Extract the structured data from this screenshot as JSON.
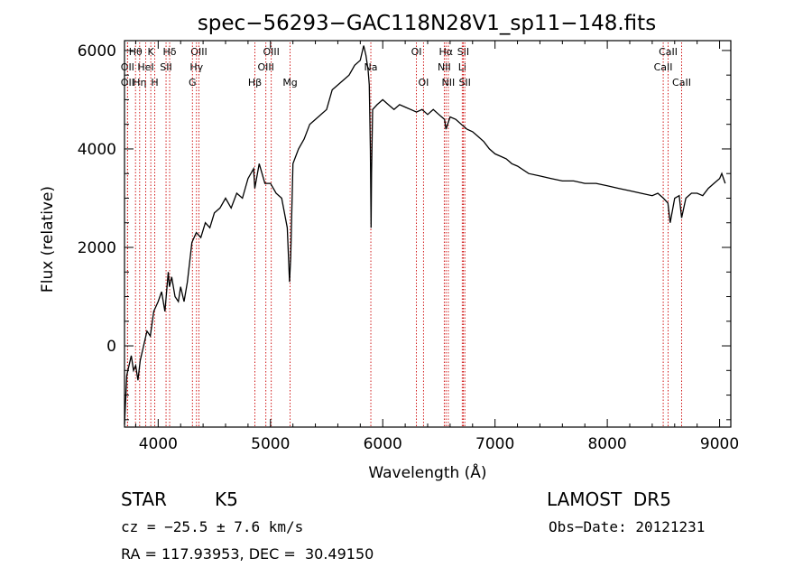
{
  "chart_data": {
    "type": "line",
    "title": "spec−56293−GAC118N28V1_sp11−148.fits",
    "xlabel": "Wavelength (Å)",
    "ylabel": "Flux (relative)",
    "xlim": [
      3700,
      9100
    ],
    "ylim": [
      -1650,
      6200
    ],
    "x_ticks": [
      4000,
      5000,
      6000,
      7000,
      8000,
      9000
    ],
    "y_ticks": [
      0,
      2000,
      4000,
      6000
    ],
    "grid": false,
    "line_color": "#000000",
    "marker_color": "#cc0000",
    "series": [
      {
        "x": [
          3700,
          3720,
          3740,
          3760,
          3780,
          3800,
          3820,
          3840,
          3860,
          3880,
          3900,
          3930,
          3960,
          4000,
          4030,
          4060,
          4090,
          4100,
          4120,
          4150,
          4180,
          4200,
          4230,
          4260,
          4300,
          4340,
          4380,
          4420,
          4460,
          4500,
          4550,
          4600,
          4650,
          4700,
          4750,
          4800,
          4850,
          4860,
          4900,
          4950,
          5000,
          5050,
          5100,
          5150,
          5170,
          5180,
          5200,
          5250,
          5300,
          5350,
          5400,
          5450,
          5500,
          5550,
          5600,
          5650,
          5700,
          5750,
          5800,
          5830,
          5850,
          5870,
          5880,
          5890,
          5896,
          5900,
          5910,
          5950,
          6000,
          6050,
          6100,
          6150,
          6200,
          6250,
          6300,
          6350,
          6400,
          6450,
          6500,
          6550,
          6563,
          6600,
          6650,
          6700,
          6750,
          6800,
          6850,
          6900,
          6950,
          7000,
          7050,
          7100,
          7150,
          7200,
          7300,
          7400,
          7500,
          7600,
          7700,
          7800,
          7900,
          8000,
          8100,
          8200,
          8300,
          8400,
          8450,
          8500,
          8540,
          8560,
          8600,
          8640,
          8662,
          8700,
          8750,
          8800,
          8850,
          8900,
          8950,
          9000,
          9020,
          9050
        ],
        "values": [
          -1600,
          -600,
          -400,
          -200,
          -500,
          -400,
          -700,
          -300,
          -100,
          100,
          300,
          200,
          700,
          900,
          1100,
          700,
          1500,
          1200,
          1400,
          1000,
          900,
          1200,
          900,
          1300,
          2100,
          2300,
          2200,
          2500,
          2400,
          2700,
          2800,
          3000,
          2800,
          3100,
          3000,
          3400,
          3600,
          3200,
          3700,
          3300,
          3300,
          3100,
          3000,
          2400,
          1300,
          1800,
          3700,
          4000,
          4200,
          4500,
          4600,
          4700,
          4800,
          5200,
          5300,
          5400,
          5500,
          5700,
          5800,
          6100,
          5900,
          5600,
          5300,
          4000,
          2400,
          3500,
          4800,
          4900,
          5000,
          4900,
          4800,
          4900,
          4850,
          4800,
          4750,
          4800,
          4700,
          4800,
          4700,
          4600,
          4400,
          4650,
          4600,
          4500,
          4400,
          4350,
          4250,
          4150,
          4000,
          3900,
          3850,
          3800,
          3700,
          3650,
          3500,
          3450,
          3400,
          3350,
          3350,
          3300,
          3300,
          3250,
          3200,
          3150,
          3100,
          3050,
          3100,
          3000,
          2900,
          2500,
          3000,
          3050,
          2600,
          3000,
          3100,
          3100,
          3050,
          3200,
          3300,
          3400,
          3500,
          3300
        ]
      }
    ],
    "lines": [
      {
        "name": "Hθ",
        "x": 3798,
        "row": 1
      },
      {
        "name": "OII",
        "x": 3727,
        "row": 2
      },
      {
        "name": "OII",
        "x": 3727,
        "row": 3
      },
      {
        "name": "K",
        "x": 3934,
        "row": 1
      },
      {
        "name": "Hη",
        "x": 3835,
        "row": 3
      },
      {
        "name": "HeI",
        "x": 3889,
        "row": 2
      },
      {
        "name": "H",
        "x": 3969,
        "row": 3
      },
      {
        "name": "Hδ",
        "x": 4102,
        "row": 1
      },
      {
        "name": "SII",
        "x": 4070,
        "row": 2
      },
      {
        "name": "OIII",
        "x": 4363,
        "row": 1
      },
      {
        "name": "Hγ",
        "x": 4341,
        "row": 2
      },
      {
        "name": "G",
        "x": 4305,
        "row": 3
      },
      {
        "name": "Hβ",
        "x": 4861,
        "row": 3
      },
      {
        "name": "OIII",
        "x": 5007,
        "row": 1
      },
      {
        "name": "OIII",
        "x": 4959,
        "row": 2
      },
      {
        "name": "Mg",
        "x": 5175,
        "row": 3
      },
      {
        "name": "Na",
        "x": 5894,
        "row": 2
      },
      {
        "name": "OI",
        "x": 6300,
        "row": 1
      },
      {
        "name": "OI",
        "x": 6363,
        "row": 3
      },
      {
        "name": "Hα",
        "x": 6563,
        "row": 1
      },
      {
        "name": "NII",
        "x": 6548,
        "row": 2
      },
      {
        "name": "NII",
        "x": 6584,
        "row": 3
      },
      {
        "name": "SII",
        "x": 6717,
        "row": 1
      },
      {
        "name": "Li",
        "x": 6708,
        "row": 2
      },
      {
        "name": "SII",
        "x": 6731,
        "row": 3
      },
      {
        "name": "CaII",
        "x": 8542,
        "row": 1
      },
      {
        "name": "CaII",
        "x": 8498,
        "row": 2
      },
      {
        "name": "CaII",
        "x": 8662,
        "row": 3
      }
    ]
  },
  "footer": {
    "object_class": "STAR",
    "subclass": "K5",
    "survey": "LAMOST  DR5",
    "redshift": "cz = −25.5 ± 7.6 km/s",
    "obs_date": "Obs−Date: 20121231",
    "coords": "RA = 117.93953, DEC =  30.49150"
  }
}
